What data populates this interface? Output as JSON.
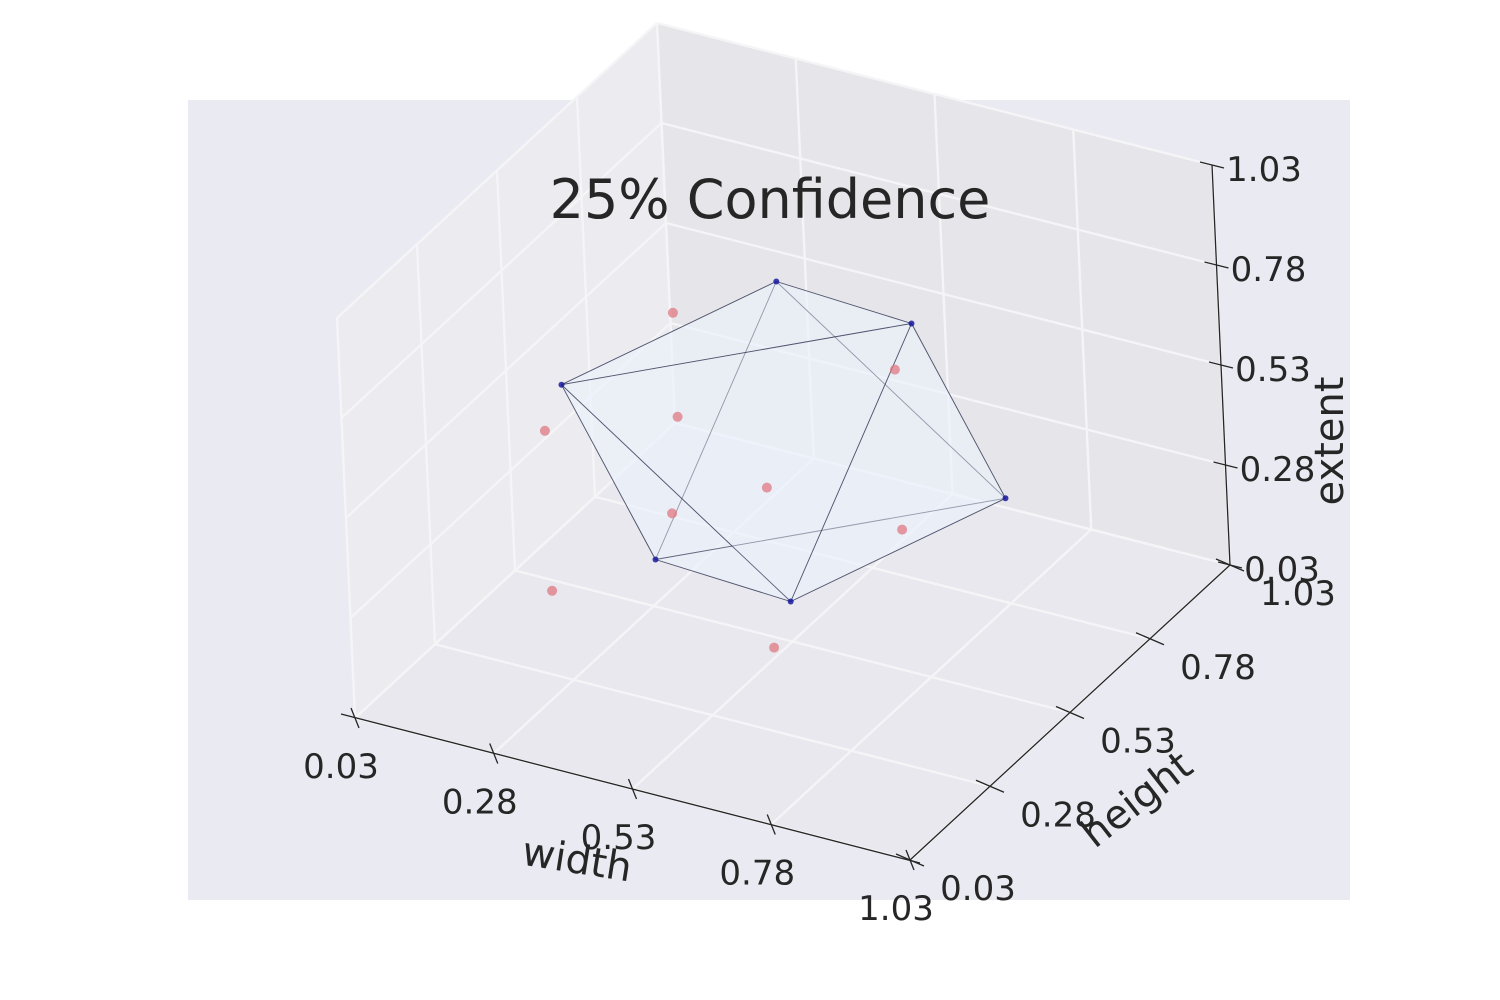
{
  "chart_data": {
    "type": "scatter3d",
    "title": "25% Confidence",
    "axes": {
      "x": {
        "label": "width",
        "range": [
          0.03,
          1.03
        ],
        "ticks": [
          "0.03",
          "0.28",
          "0.53",
          "0.78",
          "1.03"
        ]
      },
      "y": {
        "label": "height",
        "range": [
          0.03,
          1.03
        ],
        "ticks": [
          "0.03",
          "0.28",
          "0.53",
          "0.78",
          "1.03"
        ]
      },
      "z": {
        "label": "extent",
        "range": [
          0.03,
          1.03
        ],
        "ticks": [
          "0.03",
          "0.28",
          "0.53",
          "0.78",
          "1.03"
        ]
      }
    },
    "grid": true,
    "hull_vertices": [
      {
        "x": 0.53,
        "y": 0.53,
        "z": 0.93
      },
      {
        "x": 0.53,
        "y": 0.53,
        "z": 0.13
      },
      {
        "x": 0.13,
        "y": 0.53,
        "z": 0.53
      },
      {
        "x": 0.93,
        "y": 0.53,
        "z": 0.53
      },
      {
        "x": 0.53,
        "y": 0.13,
        "z": 0.53
      },
      {
        "x": 0.53,
        "y": 0.93,
        "z": 0.53
      }
    ],
    "hull_faces": [
      [
        0,
        2,
        4
      ],
      [
        0,
        4,
        3
      ],
      [
        0,
        3,
        5
      ],
      [
        0,
        5,
        2
      ],
      [
        1,
        4,
        2
      ],
      [
        1,
        3,
        4
      ],
      [
        1,
        5,
        3
      ],
      [
        1,
        2,
        5
      ]
    ],
    "points": [
      {
        "x": 0.26,
        "y": 0.26,
        "z": 0.66
      },
      {
        "x": 0.66,
        "y": 0.26,
        "z": 0.66
      },
      {
        "x": 0.26,
        "y": 0.66,
        "z": 0.66
      },
      {
        "x": 0.66,
        "y": 0.66,
        "z": 0.66
      },
      {
        "x": 0.4,
        "y": 0.4,
        "z": 0.4
      },
      {
        "x": 0.26,
        "y": 0.26,
        "z": 0.26
      },
      {
        "x": 0.66,
        "y": 0.26,
        "z": 0.26
      },
      {
        "x": 0.26,
        "y": 0.66,
        "z": 0.4
      },
      {
        "x": 0.66,
        "y": 0.66,
        "z": 0.26
      }
    ],
    "colors": {
      "background": "#EAEAF2",
      "pane_back": "#E5E5EA",
      "grid": "#F5F5F7",
      "hull_fill": "#EAF2FB",
      "hull_edge": "#1E2040",
      "vertex": "#1A1AA0",
      "point": "#E0707A",
      "text": "#262626"
    }
  }
}
